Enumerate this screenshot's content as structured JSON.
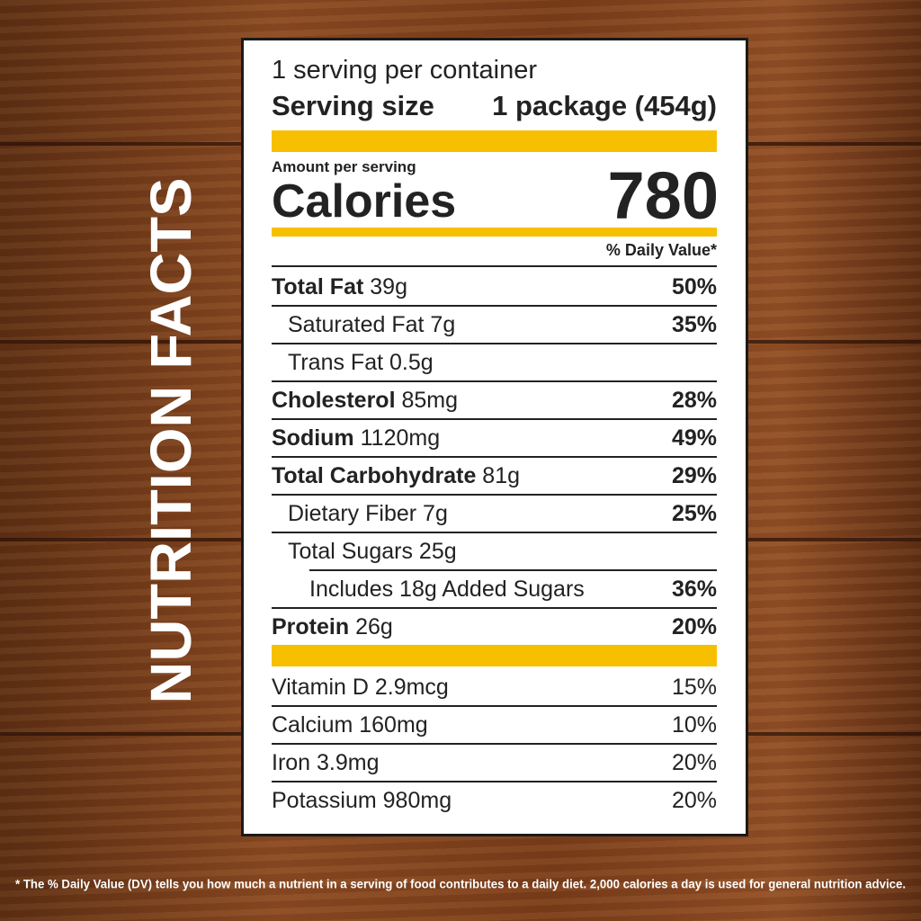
{
  "title": "NUTRITION FACTS",
  "label": {
    "servings": "1 serving per container",
    "serving_size": {
      "label": "Serving size",
      "value": "1 package (454g)"
    },
    "amount_per_serving": "Amount per serving",
    "calories": {
      "label": "Calories",
      "value": "780"
    },
    "dv_header": "% Daily Value*",
    "nutrients": [
      {
        "name": "Total Fat",
        "amount": "39g",
        "dv": "50%"
      },
      {
        "name": "Saturated Fat 7g",
        "dv": "35%"
      },
      {
        "name": "Trans Fat 0.5g"
      },
      {
        "name": "Cholesterol",
        "amount": "85mg",
        "dv": "28%"
      },
      {
        "name": "Sodium",
        "amount": "1120mg",
        "dv": "49%"
      },
      {
        "name": "Total Carbohydrate",
        "amount": "81g",
        "dv": "29%"
      },
      {
        "name": "Dietary Fiber 7g",
        "dv": "25%"
      },
      {
        "name": "Total Sugars 25g"
      },
      {
        "name": "Includes 18g Added Sugars",
        "dv": "36%"
      },
      {
        "name": "Protein",
        "amount": "26g",
        "dv": "20%"
      }
    ],
    "vitamins": [
      {
        "name": "Vitamin D 2.9mcg",
        "dv": "15%"
      },
      {
        "name": "Calcium 160mg",
        "dv": "10%"
      },
      {
        "name": "Iron 3.9mg",
        "dv": "20%"
      },
      {
        "name": "Potassium 980mg",
        "dv": "20%"
      }
    ]
  },
  "footnote": "* The % Daily Value (DV) tells you how much a nutrient in a serving of food contributes to a daily diet. 2,000 calories a day is used for general nutrition advice."
}
